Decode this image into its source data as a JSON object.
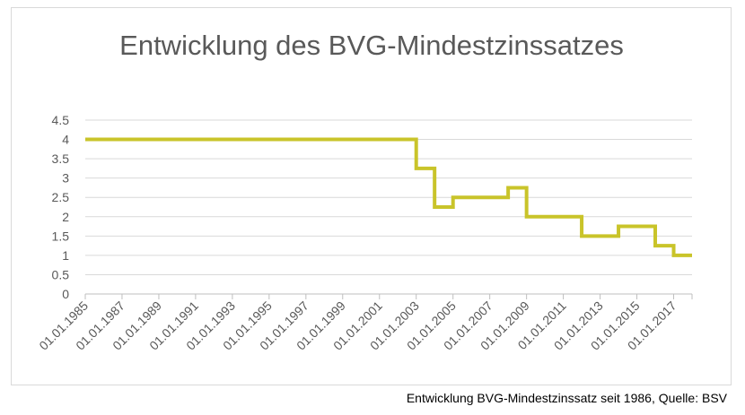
{
  "chart_data": {
    "type": "line",
    "step": true,
    "title": "Entwicklung des BVG-Mindestzinssatzes",
    "xlabel": "",
    "ylabel": "",
    "ylim": [
      0,
      4.5
    ],
    "yticks": [
      "0",
      "0.5",
      "1",
      "1.5",
      "2",
      "2.5",
      "3",
      "3.5",
      "4",
      "4.5"
    ],
    "xticks": [
      "01.01.1985",
      "01.01.1987",
      "01.01.1989",
      "01.01.1991",
      "01.01.1993",
      "01.01.1995",
      "01.01.1997",
      "01.01.1999",
      "01.01.2001",
      "01.01.2003",
      "01.01.2005",
      "01.01.2007",
      "01.01.2009",
      "01.01.2011",
      "01.01.2013",
      "01.01.2015",
      "01.01.2017"
    ],
    "xlim": [
      "01.01.1985",
      "01.01.2018"
    ],
    "grid": true,
    "legend": "none",
    "series": [
      {
        "color": "#c9c42a",
        "x": [
          "01.01.1985",
          "01.01.2003",
          "01.01.2004",
          "01.01.2005",
          "01.01.2008",
          "01.01.2009",
          "01.01.2012",
          "01.01.2014",
          "01.01.2016",
          "01.01.2017",
          "01.01.2018"
        ],
        "values": [
          4,
          3.25,
          2.25,
          2.5,
          2.75,
          2,
          1.5,
          1.75,
          1.25,
          1,
          1
        ]
      }
    ]
  },
  "caption": "Entwicklung BVG-Mindestzinssatz seit 1986, Quelle: BSV"
}
